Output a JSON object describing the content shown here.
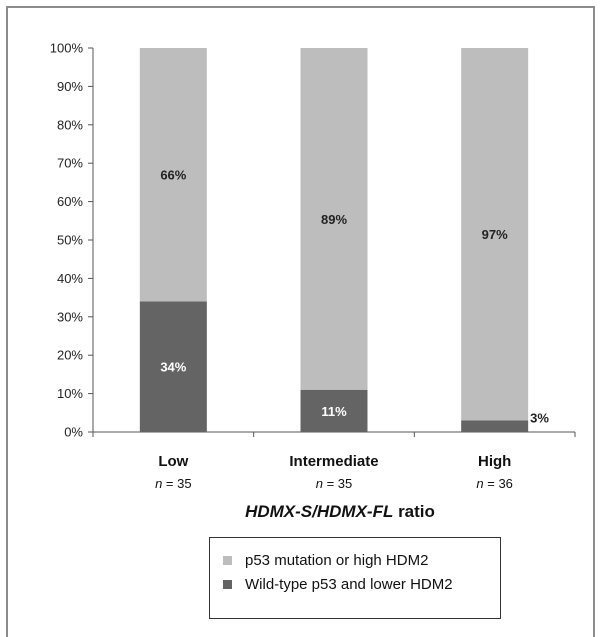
{
  "chart_data": {
    "type": "bar",
    "stacked": true,
    "percent": true,
    "categories": [
      "Low",
      "Intermediate",
      "High"
    ],
    "category_notes": [
      "= 35",
      "= 35",
      "= 36"
    ],
    "n_symbol": "n",
    "ylim": [
      0,
      100
    ],
    "yticks": [
      "0%",
      "10%",
      "20%",
      "30%",
      "40%",
      "50%",
      "60%",
      "70%",
      "80%",
      "90%",
      "100%"
    ],
    "xlabel_italic": "HDMX-S/HDMX-FL",
    "xlabel_suffix": " ratio",
    "series": [
      {
        "name": "Wild-type p53 and lower HDM2",
        "values": [
          34,
          11,
          3
        ],
        "labels": [
          "34%",
          "11%",
          "3%"
        ],
        "color": "#646464"
      },
      {
        "name": "p53 mutation or high HDM2",
        "values": [
          66,
          89,
          97
        ],
        "labels": [
          "66%",
          "89%",
          "97%"
        ],
        "color": "#bdbdbd"
      }
    ],
    "legend_position": "bottom"
  },
  "legend": {
    "items": [
      {
        "label": "p53 mutation or high HDM2",
        "color": "#bdbdbd"
      },
      {
        "label": "Wild-type p53 and lower HDM2",
        "color": "#646464"
      }
    ]
  }
}
